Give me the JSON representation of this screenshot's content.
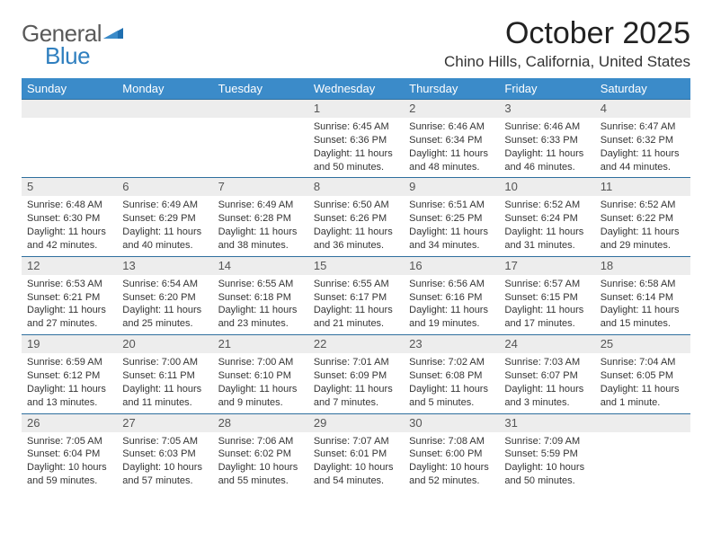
{
  "brand": {
    "part1": "General",
    "part2": "Blue"
  },
  "title": "October 2025",
  "location": "Chino Hills, California, United States",
  "colors": {
    "header_bg": "#3b8bc9",
    "header_text": "#ffffff",
    "row_border": "#2f6f9e",
    "daynum_bg": "#ededed",
    "daynum_text": "#555555",
    "body_text": "#343434",
    "brand_gray": "#5a5a5a",
    "brand_blue": "#2f7fbf"
  },
  "day_headers": [
    "Sunday",
    "Monday",
    "Tuesday",
    "Wednesday",
    "Thursday",
    "Friday",
    "Saturday"
  ],
  "weeks": [
    [
      {
        "n": "",
        "sr": "",
        "ss": "",
        "dl1": "",
        "dl2": ""
      },
      {
        "n": "",
        "sr": "",
        "ss": "",
        "dl1": "",
        "dl2": ""
      },
      {
        "n": "",
        "sr": "",
        "ss": "",
        "dl1": "",
        "dl2": ""
      },
      {
        "n": "1",
        "sr": "Sunrise: 6:45 AM",
        "ss": "Sunset: 6:36 PM",
        "dl1": "Daylight: 11 hours",
        "dl2": "and 50 minutes."
      },
      {
        "n": "2",
        "sr": "Sunrise: 6:46 AM",
        "ss": "Sunset: 6:34 PM",
        "dl1": "Daylight: 11 hours",
        "dl2": "and 48 minutes."
      },
      {
        "n": "3",
        "sr": "Sunrise: 6:46 AM",
        "ss": "Sunset: 6:33 PM",
        "dl1": "Daylight: 11 hours",
        "dl2": "and 46 minutes."
      },
      {
        "n": "4",
        "sr": "Sunrise: 6:47 AM",
        "ss": "Sunset: 6:32 PM",
        "dl1": "Daylight: 11 hours",
        "dl2": "and 44 minutes."
      }
    ],
    [
      {
        "n": "5",
        "sr": "Sunrise: 6:48 AM",
        "ss": "Sunset: 6:30 PM",
        "dl1": "Daylight: 11 hours",
        "dl2": "and 42 minutes."
      },
      {
        "n": "6",
        "sr": "Sunrise: 6:49 AM",
        "ss": "Sunset: 6:29 PM",
        "dl1": "Daylight: 11 hours",
        "dl2": "and 40 minutes."
      },
      {
        "n": "7",
        "sr": "Sunrise: 6:49 AM",
        "ss": "Sunset: 6:28 PM",
        "dl1": "Daylight: 11 hours",
        "dl2": "and 38 minutes."
      },
      {
        "n": "8",
        "sr": "Sunrise: 6:50 AM",
        "ss": "Sunset: 6:26 PM",
        "dl1": "Daylight: 11 hours",
        "dl2": "and 36 minutes."
      },
      {
        "n": "9",
        "sr": "Sunrise: 6:51 AM",
        "ss": "Sunset: 6:25 PM",
        "dl1": "Daylight: 11 hours",
        "dl2": "and 34 minutes."
      },
      {
        "n": "10",
        "sr": "Sunrise: 6:52 AM",
        "ss": "Sunset: 6:24 PM",
        "dl1": "Daylight: 11 hours",
        "dl2": "and 31 minutes."
      },
      {
        "n": "11",
        "sr": "Sunrise: 6:52 AM",
        "ss": "Sunset: 6:22 PM",
        "dl1": "Daylight: 11 hours",
        "dl2": "and 29 minutes."
      }
    ],
    [
      {
        "n": "12",
        "sr": "Sunrise: 6:53 AM",
        "ss": "Sunset: 6:21 PM",
        "dl1": "Daylight: 11 hours",
        "dl2": "and 27 minutes."
      },
      {
        "n": "13",
        "sr": "Sunrise: 6:54 AM",
        "ss": "Sunset: 6:20 PM",
        "dl1": "Daylight: 11 hours",
        "dl2": "and 25 minutes."
      },
      {
        "n": "14",
        "sr": "Sunrise: 6:55 AM",
        "ss": "Sunset: 6:18 PM",
        "dl1": "Daylight: 11 hours",
        "dl2": "and 23 minutes."
      },
      {
        "n": "15",
        "sr": "Sunrise: 6:55 AM",
        "ss": "Sunset: 6:17 PM",
        "dl1": "Daylight: 11 hours",
        "dl2": "and 21 minutes."
      },
      {
        "n": "16",
        "sr": "Sunrise: 6:56 AM",
        "ss": "Sunset: 6:16 PM",
        "dl1": "Daylight: 11 hours",
        "dl2": "and 19 minutes."
      },
      {
        "n": "17",
        "sr": "Sunrise: 6:57 AM",
        "ss": "Sunset: 6:15 PM",
        "dl1": "Daylight: 11 hours",
        "dl2": "and 17 minutes."
      },
      {
        "n": "18",
        "sr": "Sunrise: 6:58 AM",
        "ss": "Sunset: 6:14 PM",
        "dl1": "Daylight: 11 hours",
        "dl2": "and 15 minutes."
      }
    ],
    [
      {
        "n": "19",
        "sr": "Sunrise: 6:59 AM",
        "ss": "Sunset: 6:12 PM",
        "dl1": "Daylight: 11 hours",
        "dl2": "and 13 minutes."
      },
      {
        "n": "20",
        "sr": "Sunrise: 7:00 AM",
        "ss": "Sunset: 6:11 PM",
        "dl1": "Daylight: 11 hours",
        "dl2": "and 11 minutes."
      },
      {
        "n": "21",
        "sr": "Sunrise: 7:00 AM",
        "ss": "Sunset: 6:10 PM",
        "dl1": "Daylight: 11 hours",
        "dl2": "and 9 minutes."
      },
      {
        "n": "22",
        "sr": "Sunrise: 7:01 AM",
        "ss": "Sunset: 6:09 PM",
        "dl1": "Daylight: 11 hours",
        "dl2": "and 7 minutes."
      },
      {
        "n": "23",
        "sr": "Sunrise: 7:02 AM",
        "ss": "Sunset: 6:08 PM",
        "dl1": "Daylight: 11 hours",
        "dl2": "and 5 minutes."
      },
      {
        "n": "24",
        "sr": "Sunrise: 7:03 AM",
        "ss": "Sunset: 6:07 PM",
        "dl1": "Daylight: 11 hours",
        "dl2": "and 3 minutes."
      },
      {
        "n": "25",
        "sr": "Sunrise: 7:04 AM",
        "ss": "Sunset: 6:05 PM",
        "dl1": "Daylight: 11 hours",
        "dl2": "and 1 minute."
      }
    ],
    [
      {
        "n": "26",
        "sr": "Sunrise: 7:05 AM",
        "ss": "Sunset: 6:04 PM",
        "dl1": "Daylight: 10 hours",
        "dl2": "and 59 minutes."
      },
      {
        "n": "27",
        "sr": "Sunrise: 7:05 AM",
        "ss": "Sunset: 6:03 PM",
        "dl1": "Daylight: 10 hours",
        "dl2": "and 57 minutes."
      },
      {
        "n": "28",
        "sr": "Sunrise: 7:06 AM",
        "ss": "Sunset: 6:02 PM",
        "dl1": "Daylight: 10 hours",
        "dl2": "and 55 minutes."
      },
      {
        "n": "29",
        "sr": "Sunrise: 7:07 AM",
        "ss": "Sunset: 6:01 PM",
        "dl1": "Daylight: 10 hours",
        "dl2": "and 54 minutes."
      },
      {
        "n": "30",
        "sr": "Sunrise: 7:08 AM",
        "ss": "Sunset: 6:00 PM",
        "dl1": "Daylight: 10 hours",
        "dl2": "and 52 minutes."
      },
      {
        "n": "31",
        "sr": "Sunrise: 7:09 AM",
        "ss": "Sunset: 5:59 PM",
        "dl1": "Daylight: 10 hours",
        "dl2": "and 50 minutes."
      },
      {
        "n": "",
        "sr": "",
        "ss": "",
        "dl1": "",
        "dl2": ""
      }
    ]
  ]
}
